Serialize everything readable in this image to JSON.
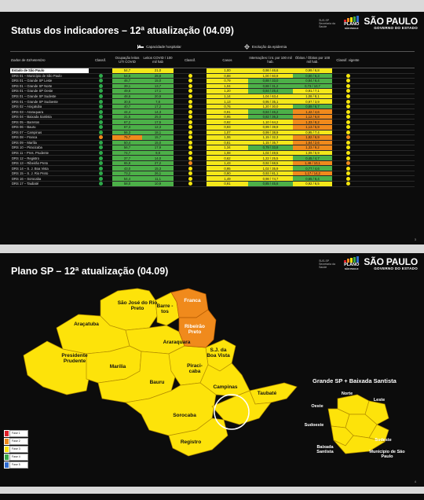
{
  "slide1": {
    "title": "Status dos indicadores – 12ª atualização (04.09)",
    "page": "3",
    "group_hospital": "Capacidade hospitalar",
    "group_epidemia": "Evolução da epidemia",
    "headers": {
      "name": "Dados de 03/setembro",
      "classif1": "Classif.",
      "ocupacao": "Ocupação leitos UTI COVID",
      "leitos": "Leitos COVID / 100 mil hab",
      "classif2": "Classif.",
      "casos": "Casos",
      "internacoes": "Internações / int. por 100 mil hab.",
      "obitos": "Óbitos / Óbitos por 100 mil hab.",
      "vigente": "Classif. vigente"
    },
    "rows": [
      {
        "name": "Estado de São Paulo",
        "c1": "",
        "ocup": "54,7",
        "lei": "21,0",
        "c2": "",
        "casos": "1,00",
        "int": "0,98 / 46,6",
        "obi": "0,99 / 6,8",
        "vig": "",
        "header": true
      },
      {
        "name": "DRS 01 – Município de São Paulo",
        "c1": "green",
        "ocup": "54,6",
        "lei": "28,8",
        "c2": "yellow",
        "casos": "0,88",
        "int": "1,00 / 60,9",
        "obi": "0,80 / 6,3",
        "vig": "yellow"
      },
      {
        "name": "DRS 01 – Grande SP Leste",
        "c1": "green",
        "ocup": "46,7",
        "lei": "15,0",
        "c2": "yellow",
        "casos": "0,79",
        "int": "0,88 / 33,0",
        "obi": "0,84 / 6,4",
        "vig": "yellow"
      },
      {
        "name": "DRS 01 – Grande SP Norte",
        "c1": "green",
        "ocup": "39,1",
        "lei": "13,7",
        "c2": "yellow",
        "casos": "1,04",
        "int": "0,88 / 31,2",
        "obi": "0,73 / 10,7",
        "vig": "yellow"
      },
      {
        "name": "DRS 01 – Grande SP Oeste",
        "c1": "green",
        "ocup": "49,6",
        "lei": "17,1",
        "c2": "yellow",
        "casos": "1,20",
        "int": "0,84 / 25,4",
        "obi": "0,91 / 7,1",
        "vig": "yellow"
      },
      {
        "name": "DRS 01 – Grande SP Sudeste",
        "c1": "green",
        "ocup": "48,6",
        "lei": "20,9",
        "c2": "yellow",
        "casos": "1,14",
        "int": "1,04 / 63,4",
        "obi": "1,08 / 8,1",
        "vig": "yellow"
      },
      {
        "name": "DRS 01 – Grande SP Sudoeste",
        "c1": "green",
        "ocup": "30,5",
        "lei": "7,8",
        "c2": "yellow",
        "casos": "1,13",
        "int": "0,95 / 35,1",
        "obi": "0,97 / 3,9",
        "vig": "yellow"
      },
      {
        "name": "DRS 02 – Araçatuba",
        "c1": "green",
        "ocup": "40,7",
        "lei": "17,2",
        "c2": "yellow",
        "casos": "0,76",
        "int": "1,20 / 30,0",
        "obi": "0,89 / 6,7",
        "vig": "yellow"
      },
      {
        "name": "DRS 03 – Araraquara",
        "c1": "green",
        "ocup": "44,4",
        "lei": "14,3",
        "c2": "yellow",
        "casos": "0,91",
        "int": "0,84 / 46,2",
        "obi": "1,42 / 4,6",
        "vig": "yellow"
      },
      {
        "name": "DRS 04 – Baixada Santista",
        "c1": "green",
        "ocup": "31,5",
        "lei": "25,0",
        "c2": "yellow",
        "casos": "0,95",
        "int": "0,82 / 36,3",
        "obi": "1,12 / 6,8",
        "vig": "yellow"
      },
      {
        "name": "DRS 05 – Barretos",
        "c1": "green",
        "ocup": "67,2",
        "lei": "17,5",
        "c2": "yellow",
        "casos": "0,92",
        "int": "1,10 / 64,2",
        "obi": "1,33 / 8,2",
        "vig": "yellow"
      },
      {
        "name": "DRS 06 – Bauru",
        "c1": "green",
        "ocup": "67,3",
        "lei": "12,3",
        "c2": "yellow",
        "casos": "0,93",
        "int": "0,99 / 39,9",
        "obi": "1,13 / 5,9",
        "vig": "yellow"
      },
      {
        "name": "DRS 07 – Campinas",
        "c1": "green",
        "ocup": "56,3",
        "lei": "18,1",
        "c2": "yellow",
        "casos": "1,07",
        "int": "0,99 / 38,9",
        "obi": "0,95 / 7,4",
        "vig": "yellow"
      },
      {
        "name": "DRS 08 – Franca",
        "c1": "orange",
        "ocup": "75,7",
        "lei": "15,7",
        "c2": "yellow",
        "casos": "1,06",
        "int": "1,15 / 32,3",
        "obi": "1,82 / 6,9",
        "vig": "orange"
      },
      {
        "name": "DRS 09 – Marília",
        "c1": "green",
        "ocup": "50,4",
        "lei": "15,0",
        "c2": "yellow",
        "casos": "0,81",
        "int": "1,15 / 35,7",
        "obi": "1,64 / 2,6",
        "vig": "yellow"
      },
      {
        "name": "DRS 10 – Piracicaba",
        "c1": "green",
        "ocup": "56,7",
        "lei": "17,9",
        "c2": "yellow",
        "casos": "1,34",
        "int": "0,79 / 33,8",
        "obi": "1,33 / 9,2",
        "vig": "yellow"
      },
      {
        "name": "DRS 11 – Pres. Prudente",
        "c1": "green",
        "ocup": "74,7",
        "lei": "9,8",
        "c2": "yellow",
        "casos": "1,08",
        "int": "1,02 / 49,5",
        "obi": "1,09 / 5,9",
        "vig": "yellow"
      },
      {
        "name": "DRS 12 – Registro",
        "c1": "green",
        "ocup": "37,7",
        "lei": "14,0",
        "c2": "yellow",
        "casos": "0,62",
        "int": "1,22 / 25,5",
        "obi": "0,45 / 4,7",
        "vig": "yellow"
      },
      {
        "name": "DRS 13 – Ribeirão Preto",
        "c1": "green",
        "ocup": "65,8",
        "lei": "27,2",
        "c2": "orange",
        "casos": "1,43",
        "int": "0,92 / 68,5",
        "obi": "1,48 / 10,1",
        "vig": "orange"
      },
      {
        "name": "DRS 14 – S. J. Boa Vista",
        "c1": "green",
        "ocup": "43,0",
        "lei": "15,3",
        "c2": "yellow",
        "casos": "0,95",
        "int": "1,02 / 35,9",
        "obi": "0,77 / 4,6",
        "vig": "yellow"
      },
      {
        "name": "DRS 15 – S. J. Rio Preto",
        "c1": "green",
        "ocup": "73,2",
        "lei": "26,1",
        "c2": "yellow",
        "casos": "0,90",
        "int": "0,93 / 81,1",
        "obi": "1,17 / 14,2",
        "vig": "yellow"
      },
      {
        "name": "DRS 16 – Sorocaba",
        "c1": "green",
        "ocup": "54,4",
        "lei": "11,1",
        "c2": "yellow",
        "casos": "1,49",
        "int": "0,98 / 74,7",
        "obi": "0,65 / 6,4",
        "vig": "yellow"
      },
      {
        "name": "DRS 17 – Taubaté",
        "c1": "green",
        "ocup": "58,0",
        "lei": "10,9",
        "c2": "yellow",
        "casos": "0,91",
        "int": "0,85 / 45,6",
        "obi": "0,92 / 6,5",
        "vig": "yellow"
      }
    ]
  },
  "slide2": {
    "title": "Plano SP – 12ª atualização (04.09)",
    "page": "4",
    "regions": {
      "sjrp": "São José do Rio Preto",
      "barretos": "Barre -tos",
      "franca": "Franca",
      "aracatuba": "Araçatuba",
      "ribeirao": "Ribeirão Preto",
      "araraquara": "Araraquara",
      "sjbv": "S.J. da Boa Vista",
      "prudente": "Presidente Prudente",
      "marilia": "Marília",
      "piracicaba": "Piraci- caba",
      "bauru": "Bauru",
      "campinas": "Campinas",
      "taubate": "Taubaté",
      "sorocaba": "Sorocaba",
      "registro": "Registro"
    },
    "inset": {
      "title": "Grande SP + Baixada Santista",
      "norte": "Norte",
      "leste": "Leste",
      "oeste": "Oeste",
      "sudoeste": "Sudoeste",
      "sudeste": "Sudeste",
      "baixada": "Baixada Santista",
      "municipio": "Município de São Paulo"
    },
    "legend": [
      {
        "label": "Fase 1",
        "color": "#e0202a"
      },
      {
        "label": "Fase 2",
        "color": "#f08a1c"
      },
      {
        "label": "Fase 3",
        "color": "#fde30a"
      },
      {
        "label": "Fase 4",
        "color": "#3aa84a"
      },
      {
        "label": "Fase 5",
        "color": "#2f6bd0"
      }
    ]
  },
  "brand": {
    "plano_line1": "PLANO",
    "plano_line2": "SÃO PAULO",
    "sp_big": "SÃO PAULO",
    "sp_small": "GOVERNO DO ESTADO",
    "health_small": "SUS-SP Secretaria da Saúde"
  },
  "colors": {
    "green": "#2eaa4a",
    "yellow": "#f5e60d",
    "orange": "#f08a1c",
    "cell_green": "#4cb048",
    "cell_yellow": "#f4e81a",
    "cell_orange": "#f08a1c"
  }
}
